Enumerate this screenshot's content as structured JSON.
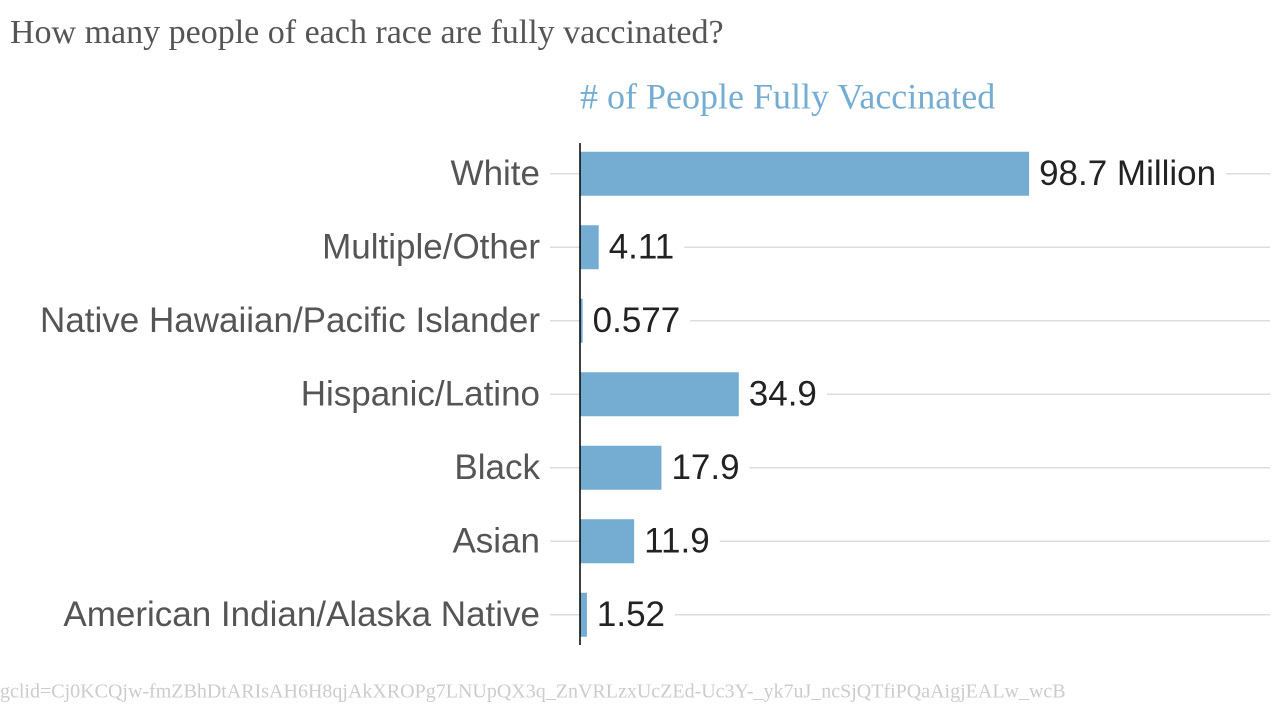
{
  "chart_data": {
    "type": "hbar",
    "title": "How many people of each race are fully vaccinated?",
    "subtitle": "# of People Fully Vaccinated",
    "categories": [
      "White",
      "Multiple/Other",
      "Native Hawaiian/Pacific Islander",
      "Hispanic/Latino",
      "Black",
      "Asian",
      "American Indian/Alaska Native"
    ],
    "values": [
      98.7,
      4.11,
      0.577,
      34.9,
      17.9,
      11.9,
      1.52
    ],
    "value_labels": [
      "98.7 Million",
      "4.11",
      "0.577",
      "34.9",
      "17.9",
      "11.9",
      "1.52"
    ],
    "color": "#74acd2",
    "xlim": [
      0,
      100
    ],
    "source": "gclid=Cj0KCQjw-fmZBhDtARIsAH6H8qjAkXROPg7LNUpQX3q_ZnVRLzxUcZEd-Uc3Y-_yk7uJ_ncSjQTfiPQaAigjEALw_wcB"
  }
}
